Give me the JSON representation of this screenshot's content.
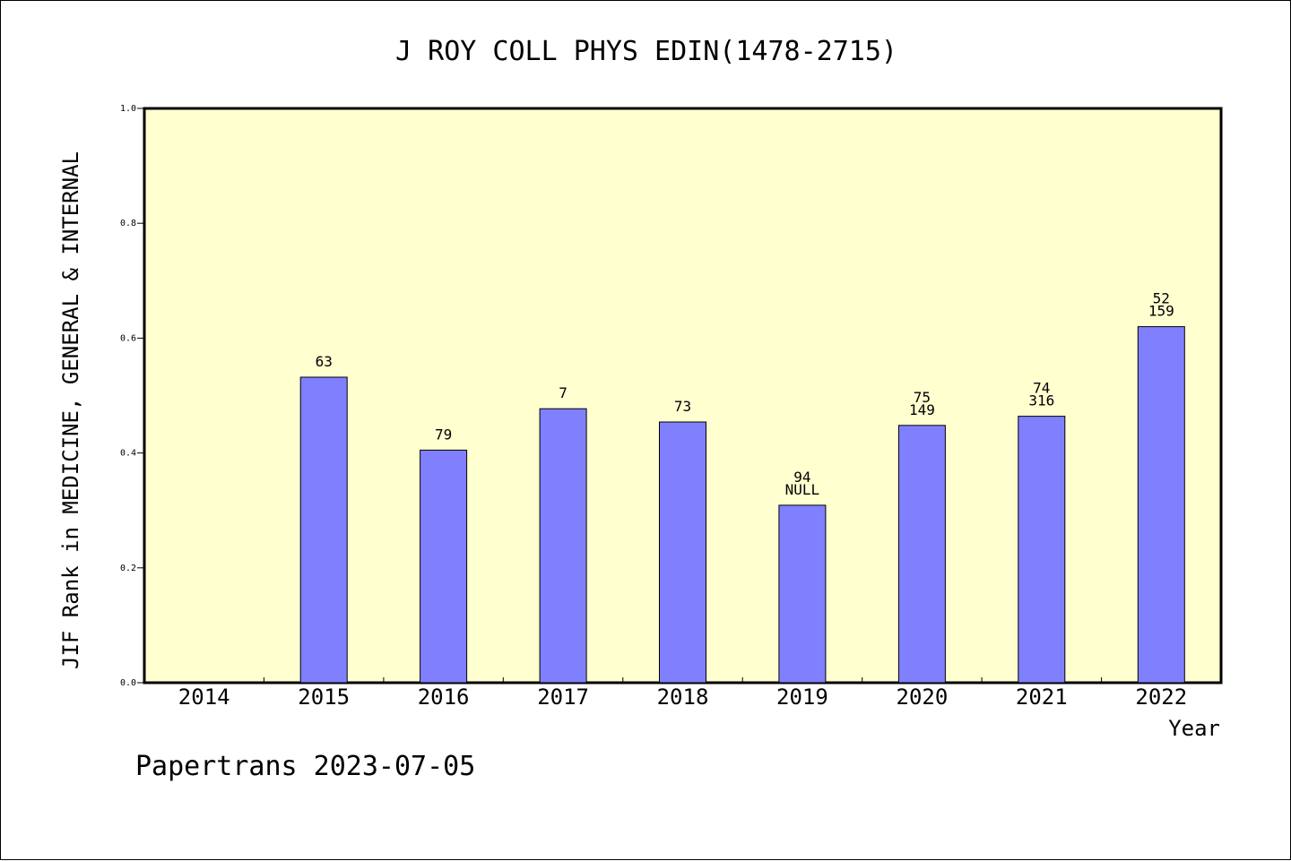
{
  "chart_data": {
    "type": "bar",
    "title": "J ROY COLL PHYS EDIN(1478-2715)",
    "xlabel": "Year",
    "ylabel": "JIF Rank in MEDICINE, GENERAL & INTERNAL",
    "ylim": [
      0,
      1.0
    ],
    "yticks": [
      "0.0",
      "0.2",
      "0.4",
      "0.6",
      "0.8",
      "1.0"
    ],
    "grid": false,
    "categories": [
      "2014",
      "2015",
      "2016",
      "2017",
      "2018",
      "2019",
      "2020",
      "2021",
      "2022"
    ],
    "values": [
      null,
      0.532,
      0.405,
      0.477,
      0.454,
      0.309,
      0.448,
      0.464,
      0.62
    ],
    "bar_labels": [
      [],
      [
        "63"
      ],
      [
        "79"
      ],
      [
        "7"
      ],
      [
        "73"
      ],
      [
        "94",
        "NULL"
      ],
      [
        "75",
        "149"
      ],
      [
        "74",
        "316"
      ],
      [
        "52",
        "159"
      ]
    ],
    "colors": {
      "plot_bg": "#ffffd0",
      "bar": "#8080ff",
      "bar_edge": "#000000"
    }
  },
  "footer": {
    "watermark": "Papertrans 2023-07-05"
  }
}
